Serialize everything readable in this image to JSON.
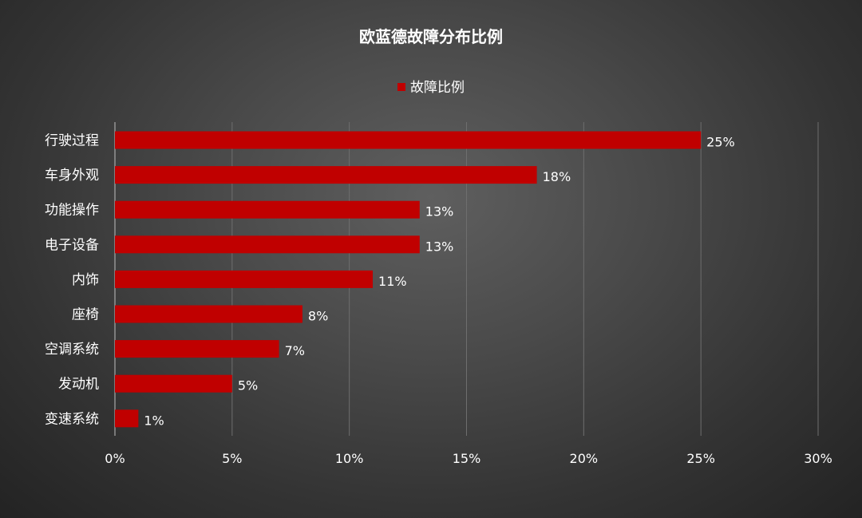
{
  "chart_data": {
    "type": "bar",
    "orientation": "horizontal",
    "title": "欧蓝德故障分布比例",
    "categories": [
      "行驶过程",
      "车身外观",
      "功能操作",
      "电子设备",
      "内饰",
      "座椅",
      "空调系统",
      "发动机",
      "变速系统"
    ],
    "series": [
      {
        "name": "故障比例",
        "values": [
          25,
          18,
          13,
          13,
          11,
          8,
          7,
          5,
          1
        ],
        "color": "#c00000"
      }
    ],
    "value_labels": [
      "25%",
      "18%",
      "13%",
      "13%",
      "11%",
      "8%",
      "7%",
      "5%",
      "1%"
    ],
    "xlim": [
      0,
      30
    ],
    "x_ticks": [
      "0%",
      "5%",
      "10%",
      "15%",
      "20%",
      "25%",
      "30%"
    ],
    "xlabel": "",
    "ylabel": "",
    "grid": true,
    "legend_position": "top",
    "background": "#3c3c3c"
  }
}
